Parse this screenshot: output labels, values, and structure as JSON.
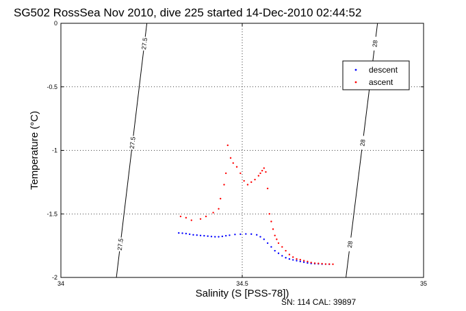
{
  "chart_data": {
    "type": "scatter",
    "title": "SG502 RossSea Nov 2010, dive 225 started 14-Dec-2010 02:44:52",
    "xlabel": "Salinity (S [PSS-78])",
    "ylabel": "Temperature (°C)",
    "xlim": [
      34,
      35
    ],
    "ylim": [
      -2,
      0
    ],
    "x_ticks": [
      "34",
      "34.5",
      "35"
    ],
    "y_ticks": [
      "0",
      "-0.5",
      "-1",
      "-1.5",
      "-2"
    ],
    "grid": true,
    "legend_position": "top-right",
    "footer": "SN: 114  CAL: 39897",
    "contours": [
      {
        "label": "27.5",
        "points": [
          [
            34.237,
            0.0
          ],
          [
            34.153,
            -2.0
          ]
        ]
      },
      {
        "label": "28",
        "points": [
          [
            34.873,
            0.0
          ],
          [
            34.786,
            -2.0
          ]
        ]
      }
    ],
    "series": [
      {
        "name": "descent",
        "color": "#0000ff",
        "points": [
          [
            34.325,
            -1.65
          ],
          [
            34.335,
            -1.652
          ],
          [
            34.345,
            -1.655
          ],
          [
            34.355,
            -1.66
          ],
          [
            34.365,
            -1.665
          ],
          [
            34.375,
            -1.667
          ],
          [
            34.385,
            -1.67
          ],
          [
            34.395,
            -1.672
          ],
          [
            34.405,
            -1.675
          ],
          [
            34.415,
            -1.678
          ],
          [
            34.425,
            -1.68
          ],
          [
            34.435,
            -1.68
          ],
          [
            34.445,
            -1.677
          ],
          [
            34.455,
            -1.672
          ],
          [
            34.465,
            -1.668
          ],
          [
            34.48,
            -1.662
          ],
          [
            34.495,
            -1.66
          ],
          [
            34.51,
            -1.658
          ],
          [
            34.525,
            -1.659
          ],
          [
            34.54,
            -1.665
          ],
          [
            34.55,
            -1.68
          ],
          [
            34.56,
            -1.7
          ],
          [
            34.57,
            -1.73
          ],
          [
            34.58,
            -1.76
          ],
          [
            34.59,
            -1.79
          ],
          [
            34.6,
            -1.81
          ],
          [
            34.61,
            -1.83
          ],
          [
            34.62,
            -1.845
          ],
          [
            34.63,
            -1.855
          ],
          [
            34.64,
            -1.862
          ],
          [
            34.65,
            -1.868
          ],
          [
            34.66,
            -1.874
          ],
          [
            34.67,
            -1.88
          ],
          [
            34.68,
            -1.886
          ],
          [
            34.69,
            -1.89
          ],
          [
            34.7,
            -1.892
          ],
          [
            34.71,
            -1.893
          ],
          [
            34.72,
            -1.895
          ],
          [
            34.73,
            -1.895
          ],
          [
            34.74,
            -1.896
          ]
        ]
      },
      {
        "name": "ascent",
        "color": "#ff0000",
        "points": [
          [
            34.33,
            -1.52
          ],
          [
            34.345,
            -1.53
          ],
          [
            34.36,
            -1.55
          ],
          [
            34.385,
            -1.54
          ],
          [
            34.4,
            -1.52
          ],
          [
            34.42,
            -1.49
          ],
          [
            34.435,
            -1.46
          ],
          [
            34.44,
            -1.38
          ],
          [
            34.45,
            -1.27
          ],
          [
            34.455,
            -1.18
          ],
          [
            34.46,
            -0.96
          ],
          [
            34.468,
            -1.06
          ],
          [
            34.475,
            -1.1
          ],
          [
            34.485,
            -1.13
          ],
          [
            34.495,
            -1.18
          ],
          [
            34.505,
            -1.24
          ],
          [
            34.515,
            -1.27
          ],
          [
            34.525,
            -1.25
          ],
          [
            34.535,
            -1.23
          ],
          [
            34.545,
            -1.2
          ],
          [
            34.55,
            -1.18
          ],
          [
            34.555,
            -1.16
          ],
          [
            34.56,
            -1.14
          ],
          [
            34.565,
            -1.17
          ],
          [
            34.57,
            -1.3
          ],
          [
            34.575,
            -1.5
          ],
          [
            34.58,
            -1.56
          ],
          [
            34.585,
            -1.62
          ],
          [
            34.59,
            -1.67
          ],
          [
            34.595,
            -1.7
          ],
          [
            34.6,
            -1.73
          ],
          [
            34.61,
            -1.76
          ],
          [
            34.62,
            -1.79
          ],
          [
            34.63,
            -1.82
          ],
          [
            34.64,
            -1.84
          ],
          [
            34.65,
            -1.855
          ],
          [
            34.66,
            -1.86
          ],
          [
            34.67,
            -1.868
          ],
          [
            34.68,
            -1.875
          ],
          [
            34.69,
            -1.883
          ],
          [
            34.7,
            -1.888
          ],
          [
            34.71,
            -1.89
          ],
          [
            34.72,
            -1.892
          ],
          [
            34.73,
            -1.895
          ],
          [
            34.74,
            -1.895
          ],
          [
            34.75,
            -1.896
          ]
        ]
      }
    ]
  }
}
